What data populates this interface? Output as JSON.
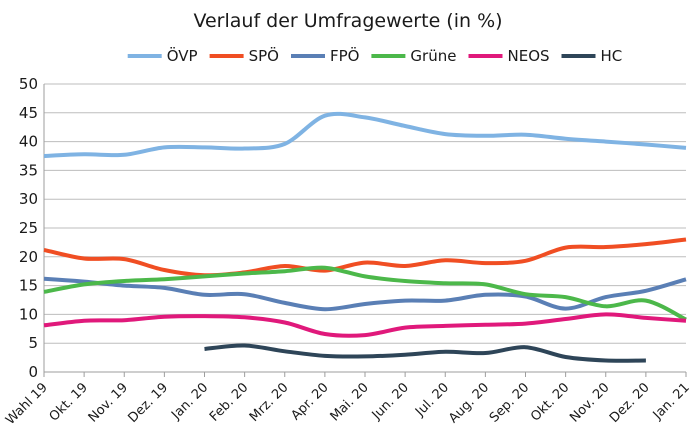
{
  "chart_data": {
    "type": "line",
    "title": "Verlauf der Umfragewerte (in %)",
    "xlabel": "",
    "ylabel": "",
    "ylim": [
      0,
      50
    ],
    "yticks": [
      0,
      5,
      10,
      15,
      20,
      25,
      30,
      35,
      40,
      45,
      50
    ],
    "grid": true,
    "legend_position": "top",
    "categories": [
      "Wahl 19",
      "Okt. 19",
      "Nov. 19",
      "Dez. 19",
      "Jan. 20",
      "Feb. 20",
      "Mrz. 20",
      "Apr. 20",
      "Mai. 20",
      "Jun. 20",
      "Jul. 20",
      "Aug. 20",
      "Sep. 20",
      "Okt. 20",
      "Nov. 20",
      "Dez. 20",
      "Jan. 21"
    ],
    "series": [
      {
        "name": "ÖVP",
        "color": "#7fb3e3",
        "values": [
          37.5,
          37.8,
          37.7,
          39.0,
          39.0,
          38.8,
          39.6,
          44.5,
          44.2,
          42.7,
          41.3,
          41.0,
          41.2,
          40.5,
          40.0,
          39.5,
          38.9
        ]
      },
      {
        "name": "SPÖ",
        "color": "#f04e23",
        "values": [
          21.2,
          19.7,
          19.6,
          17.7,
          16.8,
          17.3,
          18.4,
          17.6,
          19.0,
          18.4,
          19.4,
          18.9,
          19.3,
          21.6,
          21.7,
          22.2,
          23.0
        ]
      },
      {
        "name": "FPÖ",
        "color": "#5a7fb5",
        "values": [
          16.2,
          15.7,
          15.0,
          14.6,
          13.4,
          13.5,
          12.0,
          10.9,
          11.8,
          12.4,
          12.4,
          13.4,
          13.1,
          11.0,
          13.0,
          14.1,
          16.1
        ]
      },
      {
        "name": "Grüne",
        "color": "#4cb84a",
        "values": [
          13.9,
          15.2,
          15.8,
          16.1,
          16.6,
          17.1,
          17.5,
          18.1,
          16.6,
          15.8,
          15.4,
          15.2,
          13.5,
          13.0,
          11.4,
          12.4,
          9.1
        ]
      },
      {
        "name": "NEOS",
        "color": "#e0197b",
        "values": [
          8.1,
          8.9,
          9.0,
          9.6,
          9.7,
          9.5,
          8.6,
          6.6,
          6.4,
          7.7,
          8.0,
          8.2,
          8.4,
          9.2,
          10.0,
          9.4,
          8.9
        ]
      },
      {
        "name": "HC",
        "color": "#2e4558",
        "values": [
          null,
          null,
          null,
          null,
          4.0,
          4.6,
          3.6,
          2.8,
          2.7,
          3.0,
          3.5,
          3.3,
          4.3,
          2.6,
          2.0,
          2.0,
          null
        ]
      }
    ]
  }
}
